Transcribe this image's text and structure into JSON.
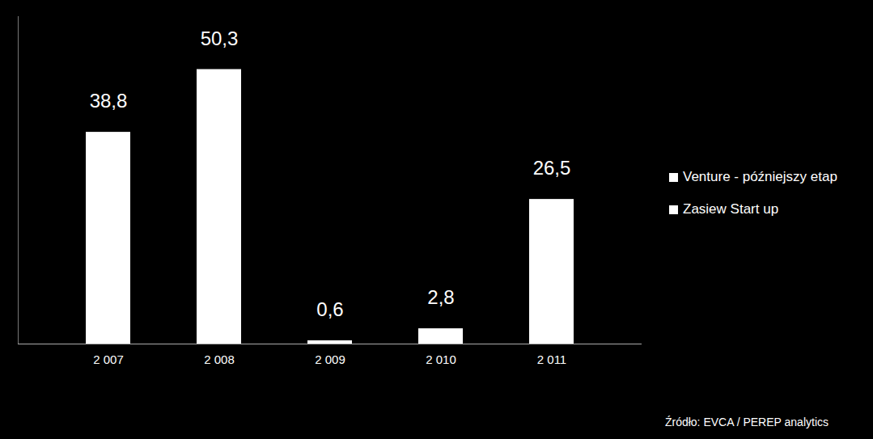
{
  "chart_data": {
    "type": "bar",
    "categories": [
      "2 007",
      "2 008",
      "2 009",
      "2 010",
      "2 011"
    ],
    "series": [
      {
        "name": "Venture - późniejszy etap",
        "color": "#ffffff",
        "values": [
          38.8,
          50.3,
          0.6,
          2.8,
          26.5
        ],
        "value_labels": [
          "38,8",
          "50,3",
          "0,6",
          "2,8",
          "26,5"
        ]
      },
      {
        "name": "Zasiew Start up",
        "color": "#ffffff",
        "values": [
          null,
          null,
          null,
          null,
          null
        ]
      }
    ],
    "ylim": [
      0,
      60
    ],
    "yticks": [],
    "data_labels": true,
    "tick_labels": "x",
    "legend": "right",
    "caption": "Źródło: EVCA / PEREP analytics"
  }
}
